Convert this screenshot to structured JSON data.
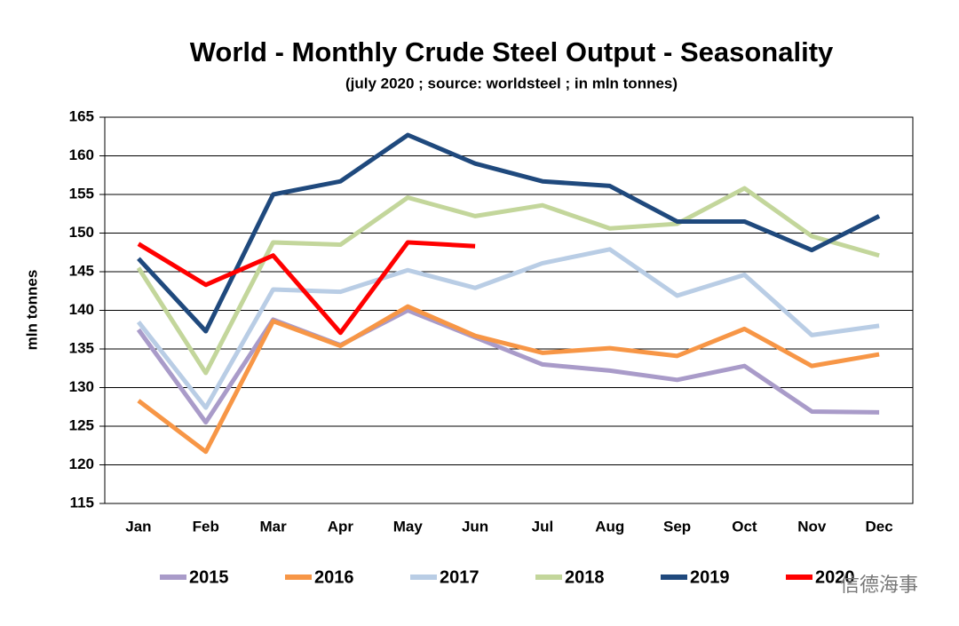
{
  "chart_data": {
    "type": "line",
    "title": "World - Monthly Crude Steel Output - Seasonality",
    "subtitle": "(july 2020 ; source: worldsteel ; in mln tonnes)",
    "y_label": "mln tonnes",
    "watermark": "信德海事",
    "categories": [
      "Jan",
      "Feb",
      "Mar",
      "Apr",
      "May",
      "Jun",
      "Jul",
      "Aug",
      "Sep",
      "Oct",
      "Nov",
      "Dec"
    ],
    "series": [
      {
        "name": "2015",
        "color": "#a99bc9",
        "values": [
          137.5,
          125.5,
          138.8,
          135.5,
          140,
          136.5,
          133,
          132.2,
          131,
          132.8,
          126.9,
          126.8
        ]
      },
      {
        "name": "2016",
        "color": "#f79646",
        "values": [
          128.3,
          121.7,
          138.6,
          135.4,
          140.5,
          136.7,
          134.5,
          135.1,
          134.1,
          137.6,
          132.8,
          134.3
        ]
      },
      {
        "name": "2017",
        "color": "#b9cde5",
        "values": [
          138.5,
          127.4,
          142.7,
          142.4,
          145.2,
          142.9,
          146.1,
          147.9,
          141.9,
          144.6,
          136.8,
          138.0
        ]
      },
      {
        "name": "2018",
        "color": "#c3d69b",
        "values": [
          145.5,
          131.9,
          148.8,
          148.5,
          154.6,
          152.2,
          153.6,
          150.6,
          151.2,
          155.8,
          149.6,
          147.1
        ]
      },
      {
        "name": "2019",
        "color": "#1f497d",
        "values": [
          146.7,
          137.3,
          155.0,
          156.7,
          162.7,
          159.0,
          156.7,
          156.1,
          151.5,
          151.5,
          147.8,
          152.2
        ]
      },
      {
        "name": "2020",
        "color": "#ff0000",
        "values": [
          148.6,
          143.3,
          147.1,
          137.1,
          148.8,
          148.3,
          null,
          null,
          null,
          null,
          null,
          null
        ]
      }
    ],
    "ylim": [
      115,
      165
    ],
    "yticks": [
      115,
      120,
      125,
      130,
      135,
      140,
      145,
      150,
      155,
      160,
      165
    ],
    "grid": true,
    "legend": "bottom"
  }
}
